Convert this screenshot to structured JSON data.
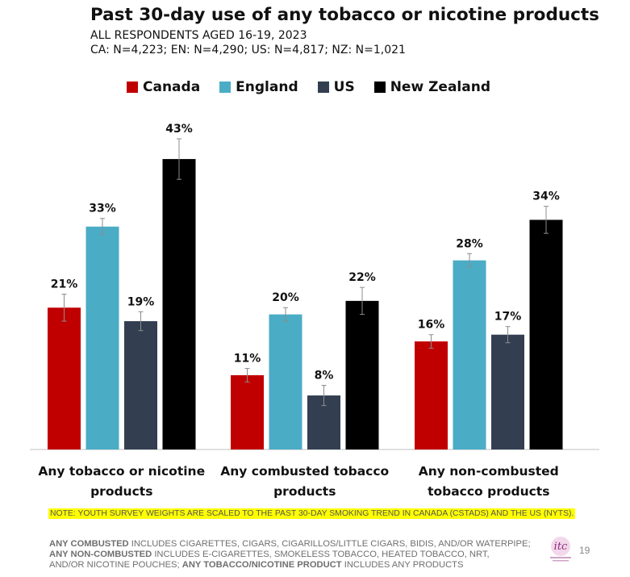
{
  "header": {
    "title": "Past 30-day use of any tobacco or nicotine products",
    "subtitle_line1": "ALL RESPONDENTS AGED 16-19, 2023",
    "subtitle_line2": "CA: N=4,223; EN: N=4,290; US: N=4,817; NZ: N=1,021"
  },
  "chart_data": {
    "type": "bar",
    "title": "Past 30-day use of any tobacco or nicotine products",
    "categories": [
      [
        "Any tobacco or nicotine",
        "products"
      ],
      [
        "Any combusted tobacco",
        "products"
      ],
      [
        "Any non-combusted",
        "tobacco products"
      ]
    ],
    "series": [
      {
        "name": "Canada",
        "color": "#c00000",
        "values": [
          21,
          11,
          16
        ],
        "labels": [
          "21%",
          "11%",
          "16%"
        ],
        "err_low": [
          19,
          10,
          15
        ],
        "err_high": [
          23,
          12,
          17
        ]
      },
      {
        "name": "England",
        "color": "#4bacc6",
        "values": [
          33,
          20,
          28
        ],
        "labels": [
          "33%",
          "20%",
          "28%"
        ],
        "err_low": [
          31.8,
          19,
          27
        ],
        "err_high": [
          34.2,
          21,
          29
        ]
      },
      {
        "name": "US",
        "color": "#333f50",
        "values": [
          19,
          8,
          17
        ],
        "labels": [
          "19%",
          "8%",
          "17%"
        ],
        "err_low": [
          17.6,
          6.5,
          15.8
        ],
        "err_high": [
          20.4,
          9.5,
          18.2
        ]
      },
      {
        "name": "New Zealand",
        "color": "#000000",
        "values": [
          43,
          22,
          34
        ],
        "labels": [
          "43%",
          "22%",
          "34%"
        ],
        "err_low": [
          40,
          20,
          32
        ],
        "err_high": [
          46,
          24,
          36
        ]
      }
    ],
    "ylim": [
      0,
      48
    ],
    "grid": false,
    "legend_position": "top"
  },
  "note": "NOTE: YOUTH SURVEY WEIGHTS ARE SCALED TO THE PAST 30-DAY SMOKING TREND IN CANADA (CSTADS) AND THE US (NYTS).",
  "footnote": {
    "line1_bold": "ANY COMBUSTED",
    "line1_rest": " INCLUDES CIGARETTES, CIGARS, CIGARILLOS/LITTLE CIGARS, BIDIS, AND/OR WATERPIPE;",
    "line2_bold": "ANY NON-COMBUSTED",
    "line2_rest": " INCLUDES E-CIGARETTES, SMOKELESS TOBACCO, HEATED TOBACCO, NRT,",
    "line3_rest": "AND/OR NICOTINE POUCHES; ",
    "line3_bold": "ANY TOBACCO/NICOTINE PRODUCT",
    "line3_end": " INCLUDES ANY PRODUCTS"
  },
  "logo": {
    "text": "itc",
    "icon": "itc-logo-icon"
  },
  "page_number": "19"
}
